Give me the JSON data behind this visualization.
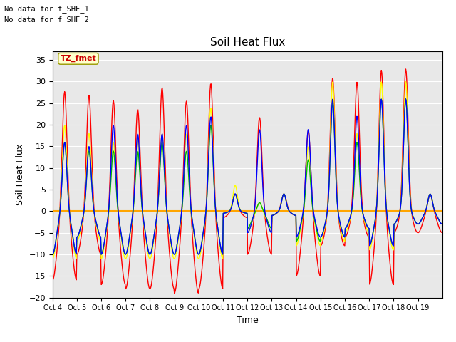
{
  "title": "Soil Heat Flux",
  "ylabel": "Soil Heat Flux",
  "xlabel": "Time",
  "no_data_text_1": "No data for f_SHF_1",
  "no_data_text_2": "No data for f_SHF_2",
  "tz_label": "TZ_fmet",
  "ylim": [
    -20,
    37
  ],
  "yticks": [
    -20,
    -15,
    -10,
    -5,
    0,
    5,
    10,
    15,
    20,
    25,
    30,
    35
  ],
  "x_tick_labels": [
    "Oct 4",
    "Oct 5",
    "Oct 6",
    "Oct 7",
    "Oct 8",
    "Oct 9",
    "Oct 10",
    "Oct 11",
    "Oct 12",
    "Oct 13",
    "Oct 14",
    "Oct 15",
    "Oct 16",
    "Oct 17",
    "Oct 18",
    "Oct 19"
  ],
  "series_colors": {
    "SHF1": "#ff0000",
    "SHF2": "#ffa500",
    "SHF3": "#ffff00",
    "SHF4": "#00bb00",
    "SHF5": "#0000ff"
  },
  "background_color": "#e8e8e8",
  "grid_color": "#ffffff",
  "title_fontsize": 11,
  "label_fontsize": 9,
  "tick_fontsize": 8
}
